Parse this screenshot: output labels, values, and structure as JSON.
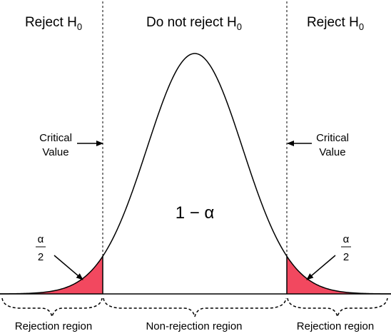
{
  "headers": {
    "left": {
      "text": "Reject H",
      "sub": "0"
    },
    "center": {
      "text": "Do not reject H",
      "sub": "0"
    },
    "right": {
      "text": "Reject H",
      "sub": "0"
    }
  },
  "critical": {
    "left": {
      "line1": "Critical",
      "line2": "Value"
    },
    "right": {
      "line1": "Critical",
      "line2": "Value"
    }
  },
  "center_label": "1 − α",
  "tail_fraction": {
    "numerator": "α",
    "denominator": "2"
  },
  "bottom": {
    "left": "Rejection region",
    "center": "Non-rejection region",
    "right": "Rejection region"
  },
  "colors": {
    "rejection_fill": "#f2485f",
    "curve": "#000000",
    "background": "#ffffff"
  }
}
